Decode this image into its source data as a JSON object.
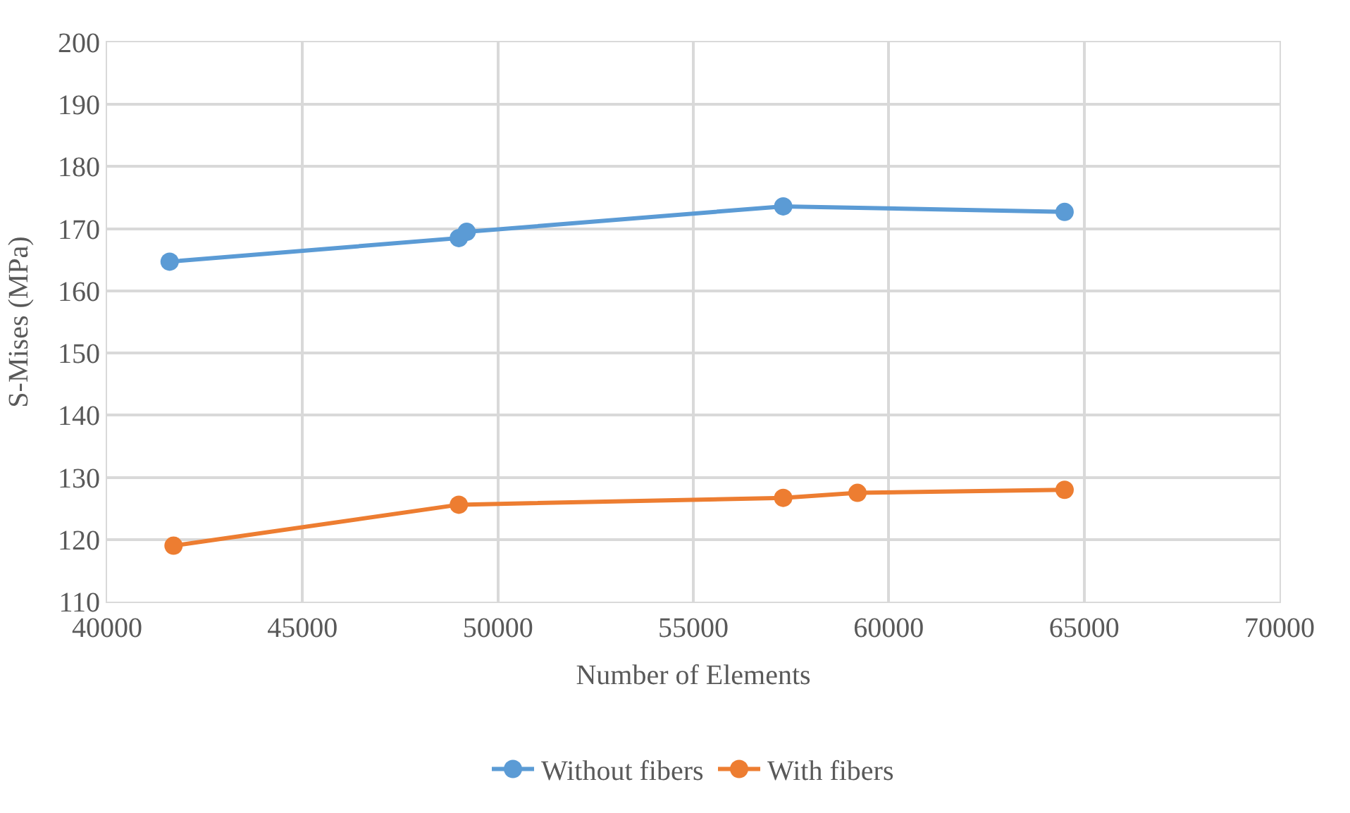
{
  "chart_data": {
    "type": "line",
    "xlabel": "Number of Elements",
    "ylabel": "S-Mises (MPa)",
    "xlim": [
      40000,
      70000
    ],
    "xticks": [
      40000,
      45000,
      50000,
      55000,
      60000,
      65000,
      70000
    ],
    "ylim": [
      110,
      200
    ],
    "yticks": [
      110,
      120,
      130,
      140,
      150,
      160,
      170,
      180,
      190,
      200
    ],
    "grid": true,
    "legend": "bottom",
    "marker": "circle",
    "line_style": "solid",
    "series": [
      {
        "name": "Without fibers",
        "color": "#5b9bd5",
        "x": [
          41600,
          49000,
          49200,
          57300,
          64500
        ],
        "values": [
          164.7,
          168.5,
          169.5,
          173.6,
          172.7
        ]
      },
      {
        "name": "With fibers",
        "color": "#ed7d31",
        "x": [
          41700,
          49000,
          57300,
          59200,
          64500
        ],
        "values": [
          119.0,
          125.6,
          126.7,
          127.5,
          128.0
        ]
      }
    ]
  }
}
